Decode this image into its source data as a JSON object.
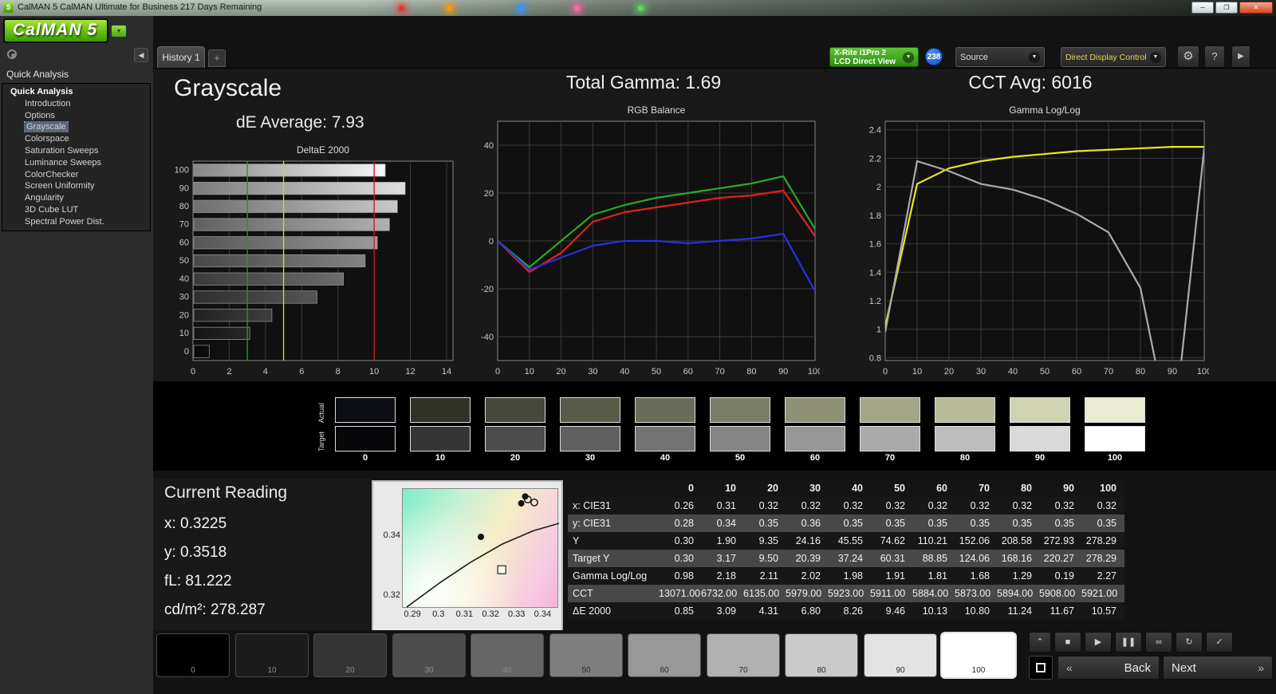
{
  "titlebar": {
    "title": "CalMAN 5 CalMAN Ultimate for Business 217 Days Remaining"
  },
  "logo": {
    "text": "CalMAN 5"
  },
  "icons": {
    "minimize": "─",
    "maximize": "❐",
    "close": "✕",
    "dropdown": "▼",
    "collapse_left": "◀",
    "expand_right": "▶",
    "gear": "⚙",
    "help": "?",
    "add": "+"
  },
  "toolbar": {
    "history_tab": "History 1",
    "meter_line1": "X-Rite i1Pro 2",
    "meter_line2": "LCD Direct View",
    "meter_badge": "238",
    "source_label": "Source",
    "display_control_label": "Direct Display Control"
  },
  "sidebar": {
    "header": "Quick Analysis",
    "items": [
      "Quick Analysis",
      "Introduction",
      "Options",
      "Grayscale",
      "Colorspace",
      "Saturation Sweeps",
      "Luminance Sweeps",
      "ColorChecker",
      "Screen Uniformity",
      "Angularity",
      "3D Cube LUT",
      "Spectral Power Dist."
    ],
    "selected": "Grayscale"
  },
  "summary": {
    "page_title": "Grayscale",
    "de_average_label": "dE Average: 7.93",
    "total_gamma_label": "Total Gamma: 1.69",
    "cct_avg_label": "CCT Avg: 6016"
  },
  "chart_data": [
    {
      "type": "bar",
      "title": "DeltaE 2000",
      "orientation": "horizontal",
      "categories": [
        100,
        90,
        80,
        70,
        60,
        50,
        40,
        30,
        20,
        10,
        0
      ],
      "values": [
        10.57,
        11.67,
        11.24,
        10.8,
        10.13,
        9.46,
        8.26,
        6.8,
        4.31,
        3.09,
        0.85
      ],
      "xlim": [
        0,
        14.35
      ],
      "x_ticks": [
        0,
        2,
        4,
        6,
        8,
        10,
        12,
        14
      ],
      "reference_lines": [
        {
          "x": 3,
          "color": "#18a018"
        },
        {
          "x": 5,
          "color": "#d8d818"
        },
        {
          "x": 10,
          "color": "#cc1818"
        }
      ]
    },
    {
      "type": "line",
      "title": "RGB Balance",
      "x": [
        0,
        10,
        20,
        30,
        40,
        50,
        60,
        70,
        80,
        90,
        100
      ],
      "ylim": [
        -50,
        50
      ],
      "y_ticks": [
        40,
        20,
        0,
        -20,
        -40
      ],
      "series": [
        {
          "name": "red",
          "color": "#e02020",
          "values": [
            0,
            -13,
            -5,
            8,
            12,
            14,
            16,
            18,
            19,
            21,
            2
          ]
        },
        {
          "name": "green",
          "color": "#28a828",
          "values": [
            0,
            -11,
            0,
            11,
            15,
            18,
            20,
            22,
            24,
            27,
            5
          ]
        },
        {
          "name": "blue",
          "color": "#2830e0",
          "values": [
            0,
            -12,
            -7,
            -2,
            0,
            0,
            -1,
            0,
            1,
            3,
            -21
          ]
        }
      ]
    },
    {
      "type": "line",
      "title": "Gamma Log/Log",
      "x": [
        0,
        10,
        20,
        30,
        40,
        50,
        60,
        70,
        80,
        90,
        100
      ],
      "ylim": [
        0.78,
        2.46
      ],
      "y_ticks": [
        2.4,
        2.2,
        2.0,
        1.8,
        1.6,
        1.4,
        1.2,
        1.0,
        0.8
      ],
      "series": [
        {
          "name": "target",
          "color": "#e8e820",
          "values": [
            1.02,
            2.02,
            2.13,
            2.18,
            2.21,
            2.23,
            2.25,
            2.26,
            2.27,
            2.28,
            2.28
          ]
        },
        {
          "name": "measured",
          "color": "#ababab",
          "values": [
            0.98,
            2.18,
            2.11,
            2.02,
            1.98,
            1.91,
            1.81,
            1.68,
            1.29,
            0.19,
            2.27
          ]
        }
      ]
    }
  ],
  "swatches": {
    "row_labels": [
      "Actual",
      "Target"
    ],
    "levels": [
      "0",
      "10",
      "20",
      "30",
      "40",
      "50",
      "60",
      "70",
      "80",
      "90",
      "100"
    ],
    "actual_colors": [
      "#0c0e13",
      "#303227",
      "#45483a",
      "#585b48",
      "#6a6d58",
      "#7b7e67",
      "#8e9176",
      "#a3a687",
      "#b8bb9a",
      "#d0d3b2",
      "#e9ecd3"
    ],
    "target_colors": [
      "#08080a",
      "#353535",
      "#4c4c4c",
      "#606060",
      "#737373",
      "#858585",
      "#979797",
      "#aaaaaa",
      "#bdbdbd",
      "#d9d9d9",
      "#ffffff"
    ]
  },
  "current_reading": {
    "title": "Current Reading",
    "x": "x: 0.3225",
    "y": "y: 0.3518",
    "fl": "fL: 81.222",
    "cdm2": "cd/m²: 278.287"
  },
  "cie": {
    "x_range": [
      0.286,
      0.346
    ],
    "y_range": [
      0.316,
      0.356
    ],
    "x_ticks": [
      0.29,
      0.3,
      0.31,
      0.32,
      0.33,
      0.34
    ],
    "y_ticks": [
      0.34,
      0.32
    ],
    "points": [
      {
        "x": 0.316,
        "y": 0.34,
        "type": "dot"
      },
      {
        "x": 0.3315,
        "y": 0.3512,
        "type": "dot"
      },
      {
        "x": 0.333,
        "y": 0.3535,
        "type": "dot"
      },
      {
        "x": 0.334,
        "y": 0.3525,
        "type": "circle"
      },
      {
        "x": 0.3365,
        "y": 0.3515,
        "type": "circle"
      },
      {
        "x": 0.324,
        "y": 0.329,
        "type": "square"
      }
    ],
    "locus": [
      [
        0.2875,
        0.3165
      ],
      [
        0.3,
        0.3245
      ],
      [
        0.312,
        0.3315
      ],
      [
        0.324,
        0.3375
      ],
      [
        0.336,
        0.342
      ],
      [
        0.346,
        0.3445
      ]
    ]
  },
  "table": {
    "columns": [
      "",
      "0",
      "10",
      "20",
      "30",
      "40",
      "50",
      "60",
      "70",
      "80",
      "90",
      "100"
    ],
    "rows": [
      {
        "label": "x: CIE31",
        "values": [
          "0.26",
          "0.31",
          "0.32",
          "0.32",
          "0.32",
          "0.32",
          "0.32",
          "0.32",
          "0.32",
          "0.32",
          "0.32"
        ]
      },
      {
        "label": "y: CIE31",
        "values": [
          "0.28",
          "0.34",
          "0.35",
          "0.36",
          "0.35",
          "0.35",
          "0.35",
          "0.35",
          "0.35",
          "0.35",
          "0.35"
        ]
      },
      {
        "label": "Y",
        "values": [
          "0.30",
          "1.90",
          "9.35",
          "24.16",
          "45.55",
          "74.62",
          "110.21",
          "152.06",
          "208.58",
          "272.93",
          "278.29"
        ]
      },
      {
        "label": "Target Y",
        "values": [
          "0.30",
          "3.17",
          "9.50",
          "20.39",
          "37.24",
          "60.31",
          "88.85",
          "124.06",
          "168.16",
          "220.27",
          "278.29"
        ]
      },
      {
        "label": "Gamma Log/Log",
        "values": [
          "0.98",
          "2.18",
          "2.11",
          "2.02",
          "1.98",
          "1.91",
          "1.81",
          "1.68",
          "1.29",
          "0.19",
          "2.27"
        ]
      },
      {
        "label": "CCT",
        "values": [
          "13071.00",
          "6732.00",
          "6135.00",
          "5979.00",
          "5923.00",
          "5911.00",
          "5884.00",
          "5873.00",
          "5894.00",
          "5908.00",
          "5921.00"
        ]
      },
      {
        "label": "ΔE 2000",
        "values": [
          "0.85",
          "3.09",
          "4.31",
          "6.80",
          "8.26",
          "9.46",
          "10.13",
          "10.80",
          "11.24",
          "11.67",
          "10.57"
        ]
      }
    ]
  },
  "patch_bar": {
    "levels": [
      "0",
      "10",
      "20",
      "30",
      "40",
      "50",
      "60",
      "70",
      "80",
      "90",
      "100"
    ],
    "colors": [
      "#000000",
      "#1b1b1b",
      "#343434",
      "#4d4d4d",
      "#666666",
      "#7f7f7f",
      "#989898",
      "#b1b1b1",
      "#cacaca",
      "#e3e3e3",
      "#ffffff"
    ],
    "selected": "100"
  },
  "transport": {
    "buttons_row1": [
      {
        "name": "collapse-up",
        "icon": "⌃"
      },
      {
        "name": "stop",
        "icon": "■"
      },
      {
        "name": "play",
        "icon": "▶"
      },
      {
        "name": "pause",
        "icon": "❚❚"
      },
      {
        "name": "continuous",
        "icon": "∞"
      },
      {
        "name": "loop",
        "icon": "↻"
      },
      {
        "name": "accept",
        "icon": "✓"
      }
    ],
    "back_icon": "«",
    "back_label": "Back",
    "next_label": "Next",
    "next_icon": "»"
  }
}
